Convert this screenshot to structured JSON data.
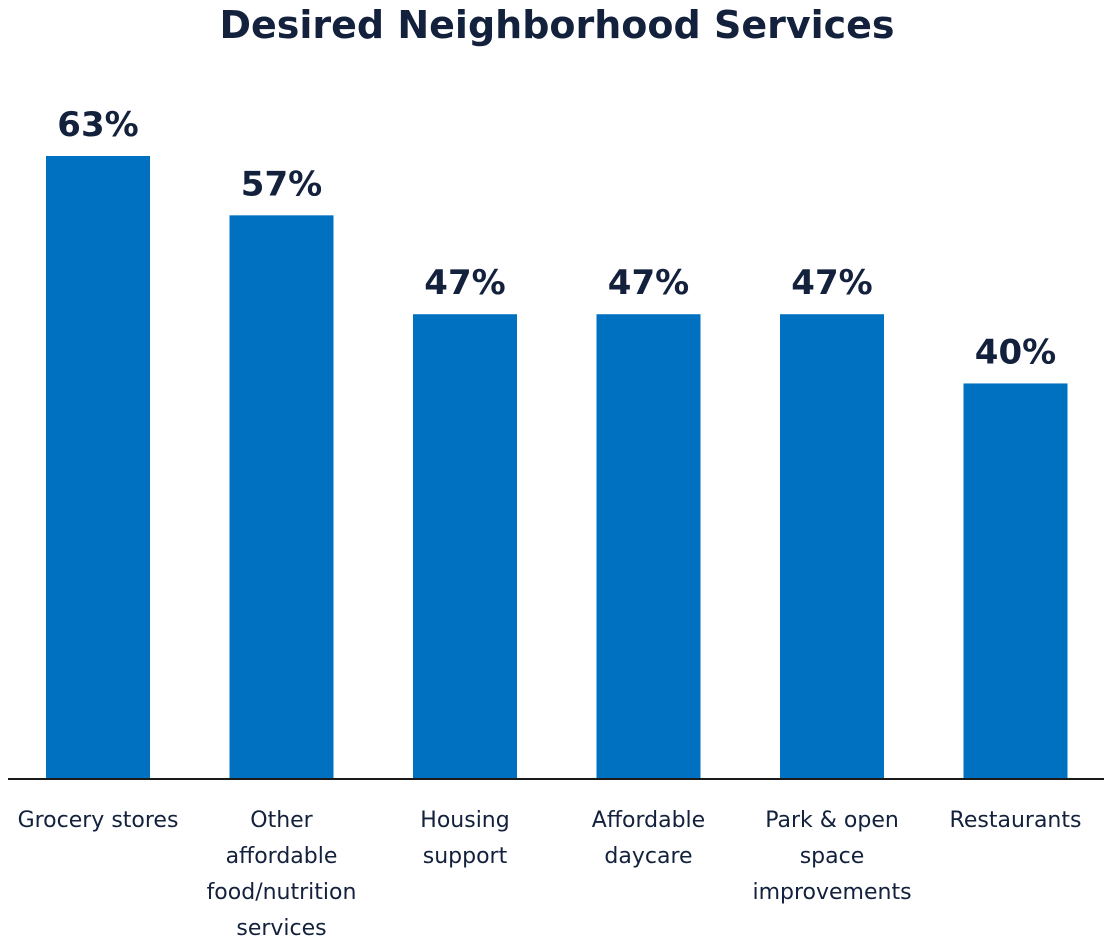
{
  "colors": {
    "bar": "#0070c0",
    "text": "#13213c",
    "axis": "#1a1a1a",
    "background": "#ffffff"
  },
  "chart_data": {
    "type": "bar",
    "title": "Desired Neighborhood Services",
    "xlabel": "",
    "ylabel": "",
    "ylim": [
      0,
      63
    ],
    "grid": false,
    "legend": "none",
    "categories": [
      [
        "Grocery stores"
      ],
      [
        "Other",
        "affordable",
        "food/nutrition",
        "services"
      ],
      [
        "Housing",
        "support"
      ],
      [
        "Affordable",
        "daycare"
      ],
      [
        "Park & open",
        "space",
        "improvements"
      ],
      [
        "Restaurants"
      ]
    ],
    "values": [
      63,
      57,
      47,
      47,
      47,
      40
    ],
    "value_labels": [
      "63%",
      "57%",
      "47%",
      "47%",
      "47%",
      "40%"
    ]
  }
}
